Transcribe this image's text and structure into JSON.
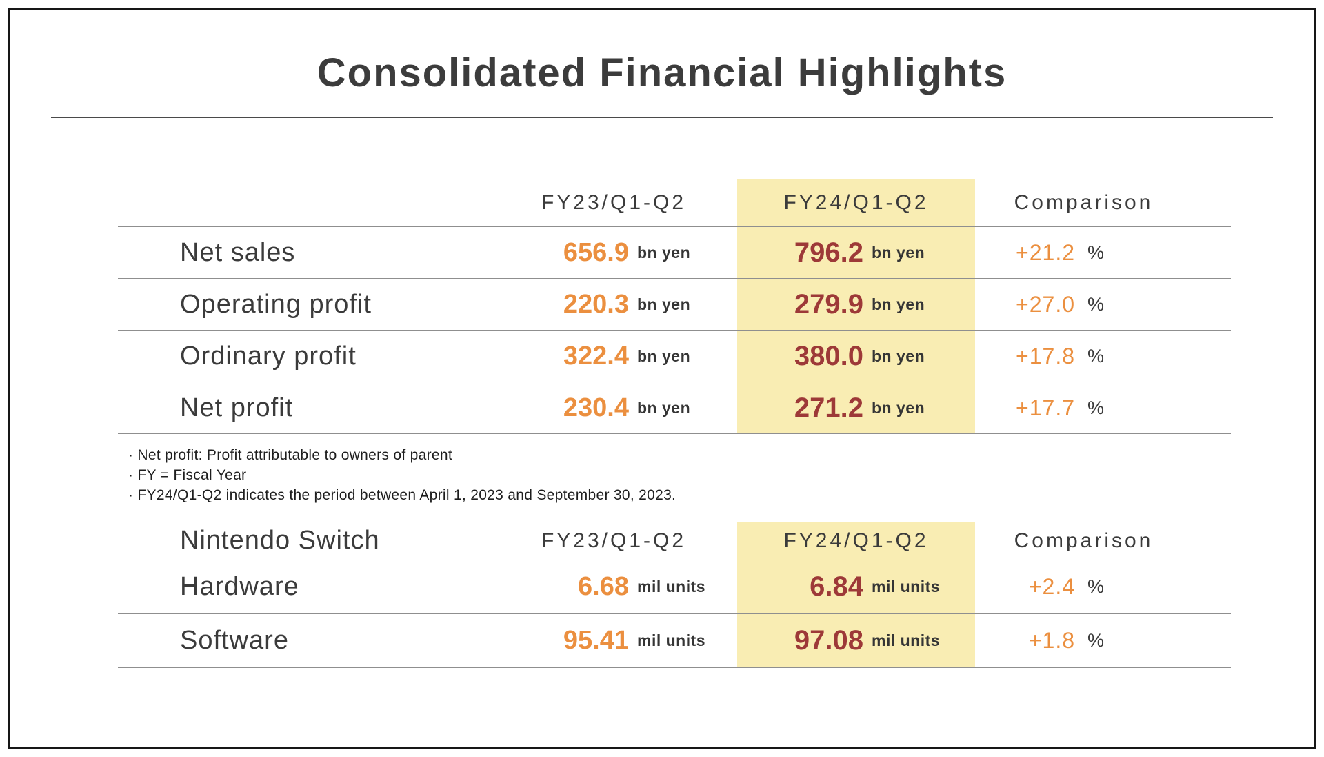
{
  "title": "Consolidated Financial Highlights",
  "colors": {
    "accent_orange": "#EB8F3F",
    "accent_maroon": "#9D3938",
    "highlight_yellow": "#F9EDB3"
  },
  "table1": {
    "headers": {
      "fy23": "FY23/Q1-Q2",
      "fy24": "FY24/Q1-Q2",
      "comparison": "Comparison"
    },
    "rows": [
      {
        "label": "Net sales",
        "fy23_value": "656.9",
        "fy23_unit": "bn yen",
        "fy24_value": "796.2",
        "fy24_unit": "bn yen",
        "comparison_value": "+21.2",
        "comparison_unit": "%"
      },
      {
        "label": "Operating profit",
        "fy23_value": "220.3",
        "fy23_unit": "bn yen",
        "fy24_value": "279.9",
        "fy24_unit": "bn yen",
        "comparison_value": "+27.0",
        "comparison_unit": "%"
      },
      {
        "label": "Ordinary profit",
        "fy23_value": "322.4",
        "fy23_unit": "bn yen",
        "fy24_value": "380.0",
        "fy24_unit": "bn yen",
        "comparison_value": "+17.8",
        "comparison_unit": "%"
      },
      {
        "label": "Net profit",
        "fy23_value": "230.4",
        "fy23_unit": "bn yen",
        "fy24_value": "271.2",
        "fy24_unit": "bn yen",
        "comparison_value": "+17.7",
        "comparison_unit": "%"
      }
    ]
  },
  "footnotes": [
    "· Net profit: Profit attributable to owners of parent",
    "· FY = Fiscal Year",
    "· FY24/Q1-Q2 indicates the period between April 1, 2023 and September 30, 2023."
  ],
  "table2": {
    "title": "Nintendo Switch",
    "headers": {
      "fy23": "FY23/Q1-Q2",
      "fy24": "FY24/Q1-Q2",
      "comparison": "Comparison"
    },
    "rows": [
      {
        "label": "Hardware",
        "fy23_value": "6.68",
        "fy23_unit": "mil units",
        "fy24_value": "6.84",
        "fy24_unit": "mil units",
        "comparison_value": "+2.4",
        "comparison_unit": "%"
      },
      {
        "label": "Software",
        "fy23_value": "95.41",
        "fy23_unit": "mil units",
        "fy24_value": "97.08",
        "fy24_unit": "mil units",
        "comparison_value": "+1.8",
        "comparison_unit": "%"
      }
    ]
  }
}
